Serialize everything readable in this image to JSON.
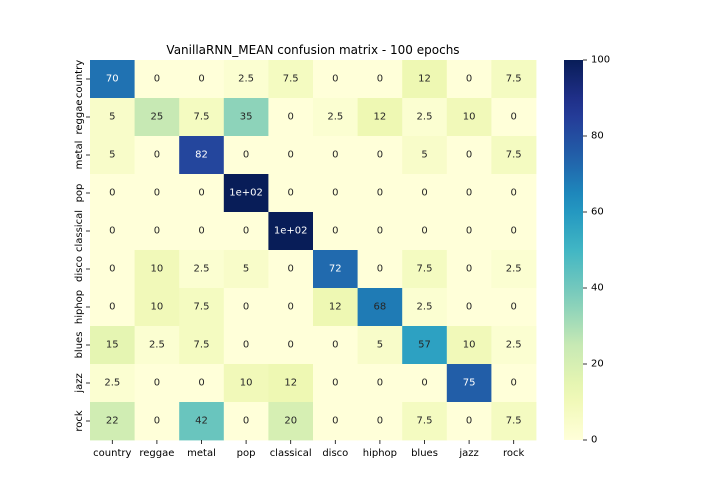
{
  "chart_data": {
    "type": "heatmap",
    "title": "VanillaRNN_MEAN confusion matrix - 100 epochs",
    "xlabel": "",
    "ylabel": "",
    "x_categories": [
      "country",
      "reggae",
      "metal",
      "pop",
      "classical",
      "disco",
      "hiphop",
      "blues",
      "jazz",
      "rock"
    ],
    "y_categories": [
      "country",
      "reggae",
      "metal",
      "pop",
      "classical",
      "disco",
      "hiphop",
      "blues",
      "jazz",
      "rock"
    ],
    "values": [
      [
        70,
        0,
        0,
        2.5,
        7.5,
        0,
        0,
        12,
        0,
        7.5
      ],
      [
        5,
        25,
        7.5,
        35,
        0,
        2.5,
        12,
        2.5,
        10,
        0
      ],
      [
        5,
        0,
        82,
        0,
        0,
        0,
        0,
        5,
        0,
        7.5
      ],
      [
        0,
        0,
        0,
        100,
        0,
        0,
        0,
        0,
        0,
        0
      ],
      [
        0,
        0,
        0,
        0,
        100,
        0,
        0,
        0,
        0,
        0
      ],
      [
        0,
        10,
        2.5,
        5,
        0,
        72,
        0,
        7.5,
        0,
        2.5
      ],
      [
        0,
        10,
        7.5,
        0,
        0,
        12,
        68,
        2.5,
        0,
        0
      ],
      [
        15,
        2.5,
        7.5,
        0,
        0,
        0,
        5,
        57,
        10,
        2.5
      ],
      [
        2.5,
        0,
        0,
        10,
        12,
        0,
        0,
        0,
        75,
        0
      ],
      [
        22,
        0,
        42,
        0,
        20,
        0,
        0,
        7.5,
        0,
        7.5
      ]
    ],
    "annotations": [
      [
        "70",
        "0",
        "0",
        "2.5",
        "7.5",
        "0",
        "0",
        "12",
        "0",
        "7.5"
      ],
      [
        "5",
        "25",
        "7.5",
        "35",
        "0",
        "2.5",
        "12",
        "2.5",
        "10",
        "0"
      ],
      [
        "5",
        "0",
        "82",
        "0",
        "0",
        "0",
        "0",
        "5",
        "0",
        "7.5"
      ],
      [
        "0",
        "0",
        "0",
        "1e+02",
        "0",
        "0",
        "0",
        "0",
        "0",
        "0"
      ],
      [
        "0",
        "0",
        "0",
        "0",
        "1e+02",
        "0",
        "0",
        "0",
        "0",
        "0"
      ],
      [
        "0",
        "10",
        "2.5",
        "5",
        "0",
        "72",
        "0",
        "7.5",
        "0",
        "2.5"
      ],
      [
        "0",
        "10",
        "7.5",
        "0",
        "0",
        "12",
        "68",
        "2.5",
        "0",
        "0"
      ],
      [
        "15",
        "2.5",
        "7.5",
        "0",
        "0",
        "0",
        "5",
        "57",
        "10",
        "2.5"
      ],
      [
        "2.5",
        "0",
        "0",
        "10",
        "12",
        "0",
        "0",
        "0",
        "75",
        "0"
      ],
      [
        "22",
        "0",
        "42",
        "0",
        "20",
        "0",
        "0",
        "7.5",
        "0",
        "7.5"
      ]
    ],
    "colormap": "YlGnBu",
    "vmin": 0,
    "vmax": 100,
    "colorbar_ticks": [
      0,
      20,
      40,
      60,
      80,
      100
    ],
    "grid": false
  }
}
